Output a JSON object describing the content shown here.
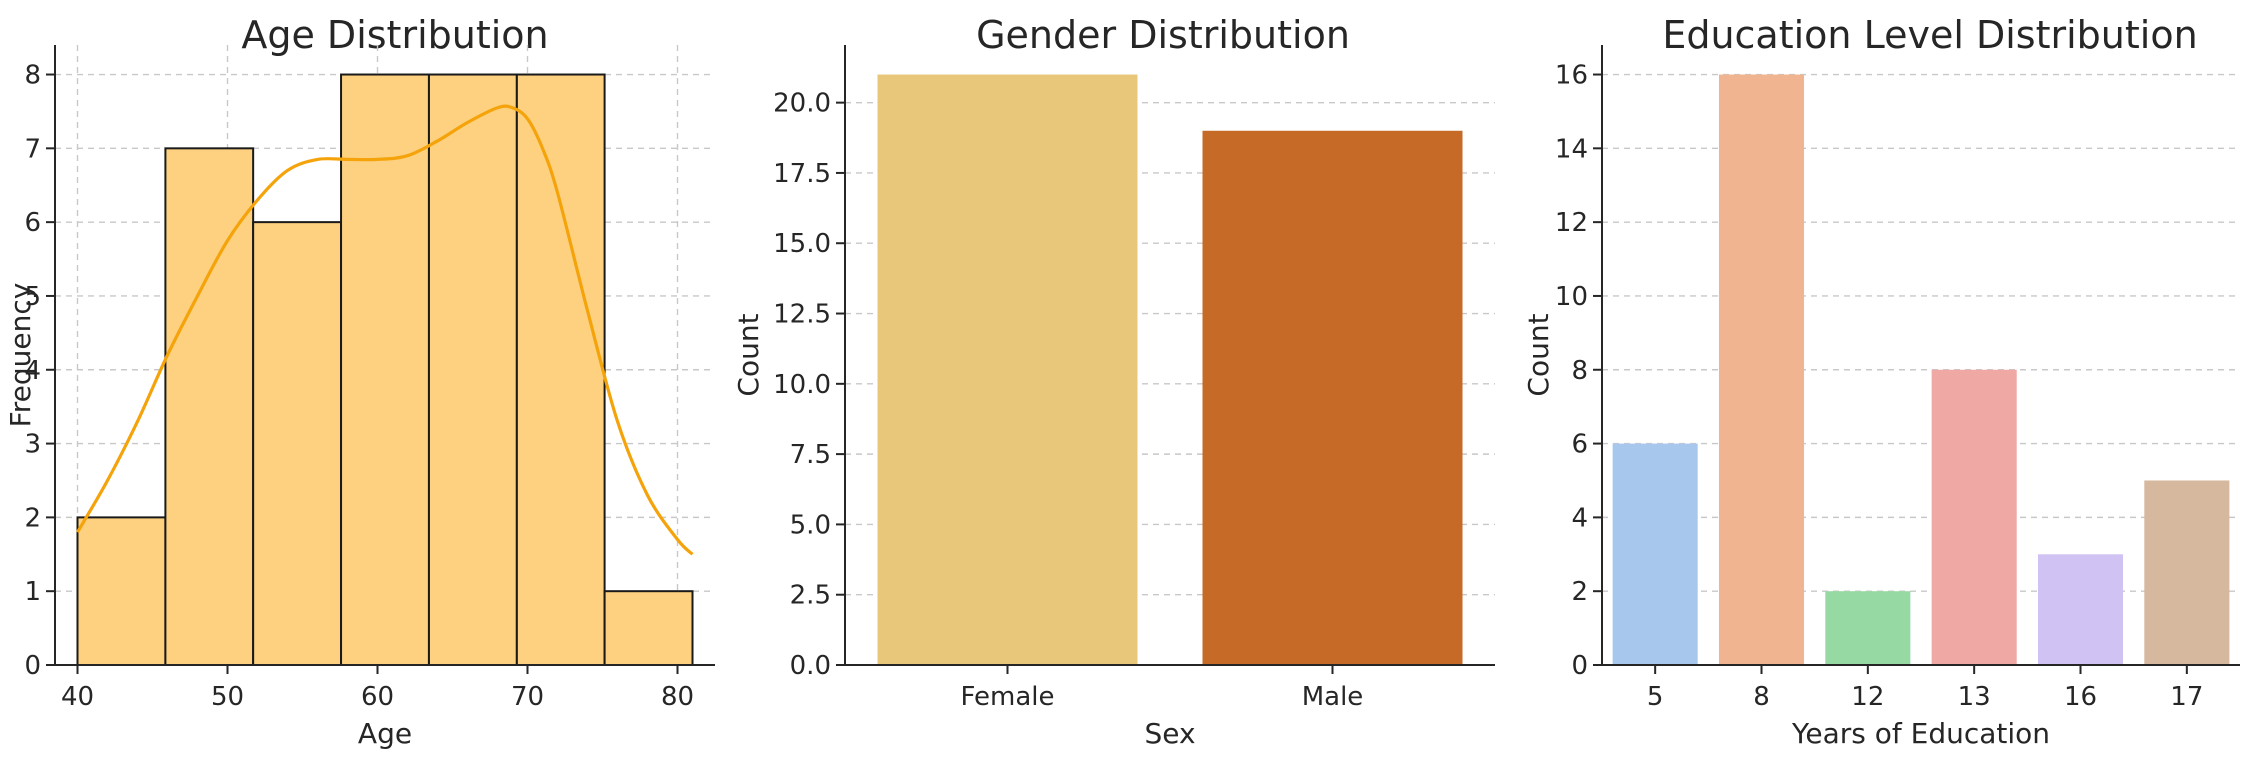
{
  "chart_data": [
    {
      "type": "bar",
      "subtype": "histogram",
      "title": "Age Distribution",
      "xlabel": "Age",
      "ylabel": "Frequency",
      "bins": [
        {
          "from": 40,
          "to": 45.86,
          "count": 2
        },
        {
          "from": 45.86,
          "to": 51.71,
          "count": 7
        },
        {
          "from": 51.71,
          "to": 57.57,
          "count": 6
        },
        {
          "from": 57.57,
          "to": 63.43,
          "count": 8
        },
        {
          "from": 63.43,
          "to": 69.29,
          "count": 8
        },
        {
          "from": 69.29,
          "to": 75.14,
          "count": 8
        },
        {
          "from": 75.14,
          "to": 81,
          "count": 1
        }
      ],
      "kde": {
        "x": [
          40,
          42,
          44,
          46,
          48,
          50,
          52,
          54,
          56,
          58,
          60,
          62,
          64,
          66,
          68,
          69,
          70,
          71,
          72,
          74,
          76,
          78,
          80,
          81
        ],
        "y": [
          1.8,
          2.5,
          3.3,
          4.2,
          5.0,
          5.75,
          6.3,
          6.7,
          6.85,
          6.85,
          6.85,
          6.9,
          7.1,
          7.35,
          7.55,
          7.55,
          7.4,
          7.0,
          6.4,
          4.8,
          3.3,
          2.3,
          1.7,
          1.5
        ]
      },
      "xlim": [
        38.5,
        82.5
      ],
      "ylim": [
        0,
        8.4
      ],
      "xticks": [
        40,
        50,
        60,
        70,
        80
      ],
      "yticks": [
        0,
        1,
        2,
        3,
        4,
        5,
        6,
        7,
        8
      ],
      "grid": true,
      "colors": {
        "bar": "#fdd17f",
        "edge": "#1a1a1a",
        "kde": "#f5a30a"
      }
    },
    {
      "type": "bar",
      "title": "Gender Distribution",
      "xlabel": "Sex",
      "ylabel": "Count",
      "categories": [
        "Female",
        "Male"
      ],
      "values": [
        21,
        19
      ],
      "ylim": [
        0,
        22.05
      ],
      "yticks": [
        "0.0",
        "2.5",
        "5.0",
        "7.5",
        "10.0",
        "12.5",
        "15.0",
        "17.5",
        "20.0"
      ],
      "grid": true,
      "colors": [
        "#e8c77a",
        "#c66a28"
      ]
    },
    {
      "type": "bar",
      "title": "Education Level Distribution",
      "xlabel": "Years of Education",
      "ylabel": "Count",
      "categories": [
        "5",
        "8",
        "12",
        "13",
        "16",
        "17"
      ],
      "values": [
        6,
        16,
        2,
        8,
        3,
        5
      ],
      "ylim": [
        0,
        16.8
      ],
      "yticks": [
        0,
        2,
        4,
        6,
        8,
        10,
        12,
        14,
        16
      ],
      "grid": true,
      "colors": [
        "#a7c8ec",
        "#f0b590",
        "#96d9a3",
        "#efa8a3",
        "#d0c3f4",
        "#d5b89e"
      ]
    }
  ]
}
